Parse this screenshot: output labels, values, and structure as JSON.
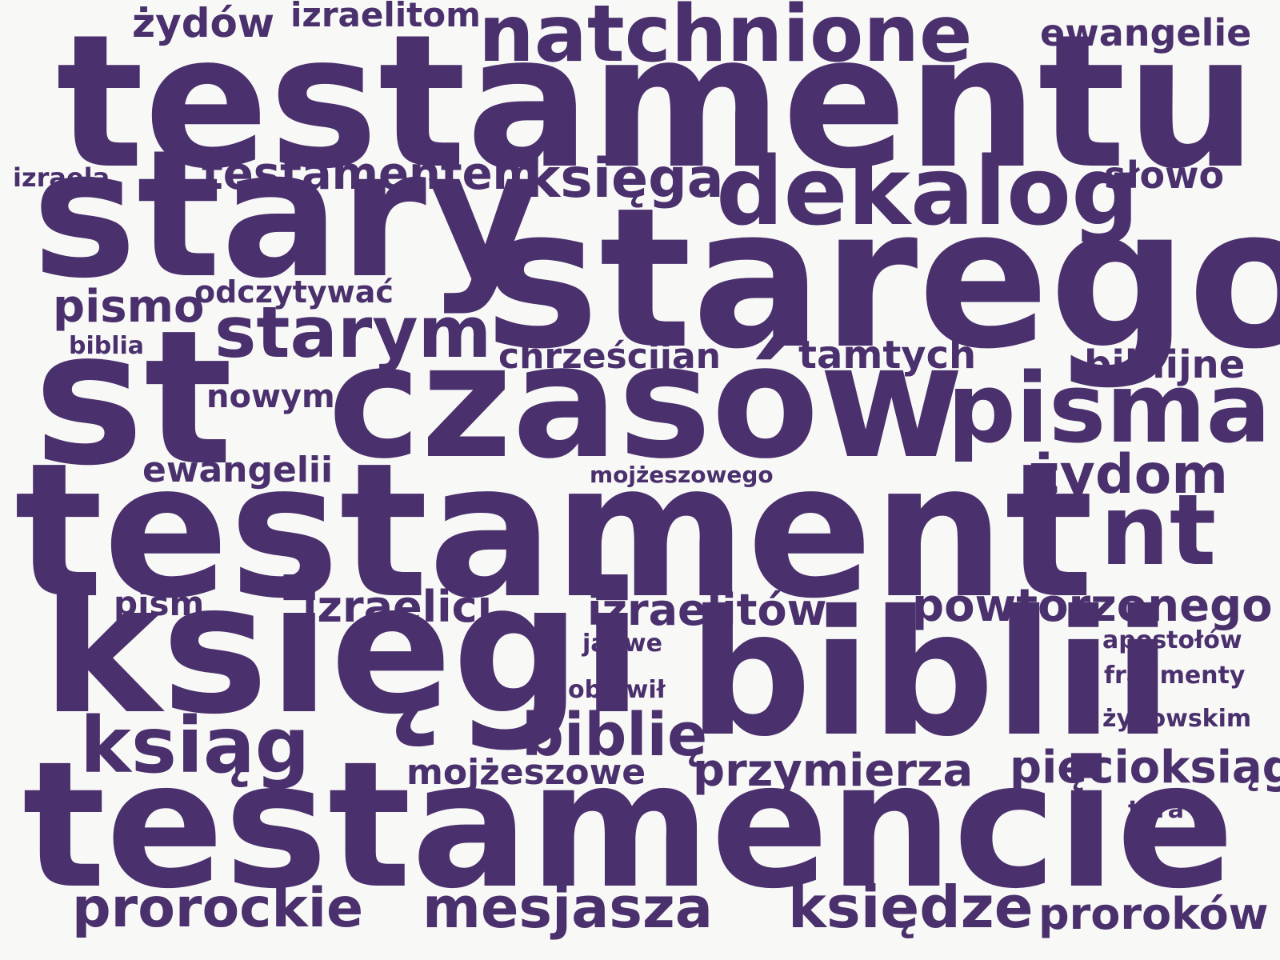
{
  "colors": {
    "text": "#4a306d",
    "background": "#f8f8f6"
  },
  "words": {
    "testamentu": "testamentu",
    "natchnione": "natchnione",
    "zydow": "żydów",
    "izraelitom": "izraelitom",
    "ewangelie": "ewangelie",
    "izraela": "izraela",
    "testamentem": "testamentem",
    "ksiega": "księga",
    "dekalog": "dekalog",
    "slowo": "słowo",
    "stary": "stary",
    "starego": "starego",
    "pismo": "pismo",
    "odczytywac": "odczytywać",
    "starym": "starym",
    "biblia": "biblia",
    "chrzescijan": "chrześcijan",
    "tamtych": "tamtych",
    "biblijne": "biblijne",
    "st": "st",
    "nowym": "nowym",
    "czasow": "czasów",
    "pisma": "pisma",
    "ewangelii": "ewangelii",
    "mojzeszowego": "mojżeszowego",
    "zydom": "żydom",
    "testament": "testament",
    "nt": "nt",
    "pism": "pism",
    "izraelici": "izraelici",
    "izraelitow": "izraelitów",
    "powtorzonego": "powtórzonego",
    "ksiegi": "księgi",
    "jahwe": "jahwe",
    "biblii": "biblii",
    "apostolow": "apostołów",
    "fragmenty": "fragmenty",
    "objawil": "objawił",
    "zydowskim": "żydowskim",
    "ksiag": "ksiąg",
    "biblie": "biblię",
    "mojzeszowe": "mojżeszowe",
    "przymierza": "przymierza",
    "pieciksiag": "pięcioksiąg",
    "tora": "tora",
    "testamencie": "testamencie",
    "prorockie": "prorockie",
    "mesjasza": "mesjasza",
    "ksiedze": "księdze",
    "prorokow": "proroków"
  }
}
